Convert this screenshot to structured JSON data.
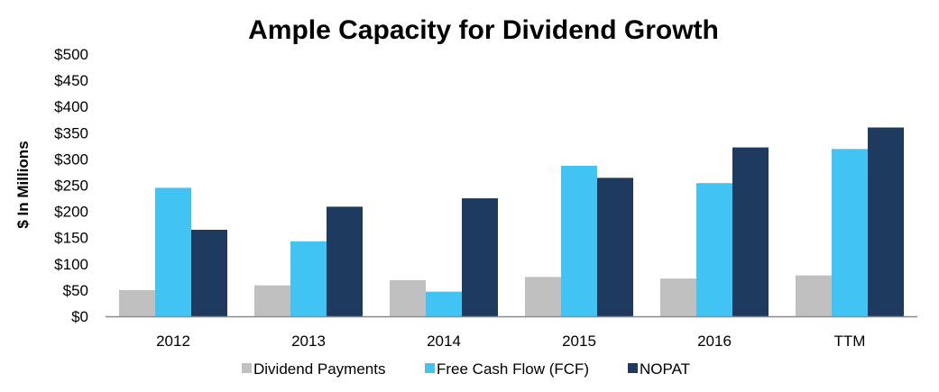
{
  "chart_data": {
    "type": "bar",
    "title": "Ample Capacity for Dividend Growth",
    "xlabel": "",
    "ylabel": "$ In Millions",
    "categories": [
      "2012",
      "2013",
      "2014",
      "2015",
      "2016",
      "TTM"
    ],
    "y_ticks": [
      "$0",
      "$50",
      "$100",
      "$150",
      "$200",
      "$250",
      "$300",
      "$350",
      "$400",
      "$450",
      "$500"
    ],
    "ylim": [
      0,
      500
    ],
    "grid": false,
    "legend_position": "bottom",
    "series": [
      {
        "name": "Dividend Payments",
        "color": "#c0c0c0",
        "values": [
          50,
          59,
          69,
          75,
          72,
          78
        ]
      },
      {
        "name": "Free Cash Flow (FCF)",
        "color": "#41c4f3",
        "values": [
          245,
          143,
          47,
          287,
          254,
          319
        ]
      },
      {
        "name": "NOPAT",
        "color": "#1f3a5f",
        "values": [
          165,
          209,
          225,
          264,
          322,
          360
        ]
      }
    ]
  }
}
